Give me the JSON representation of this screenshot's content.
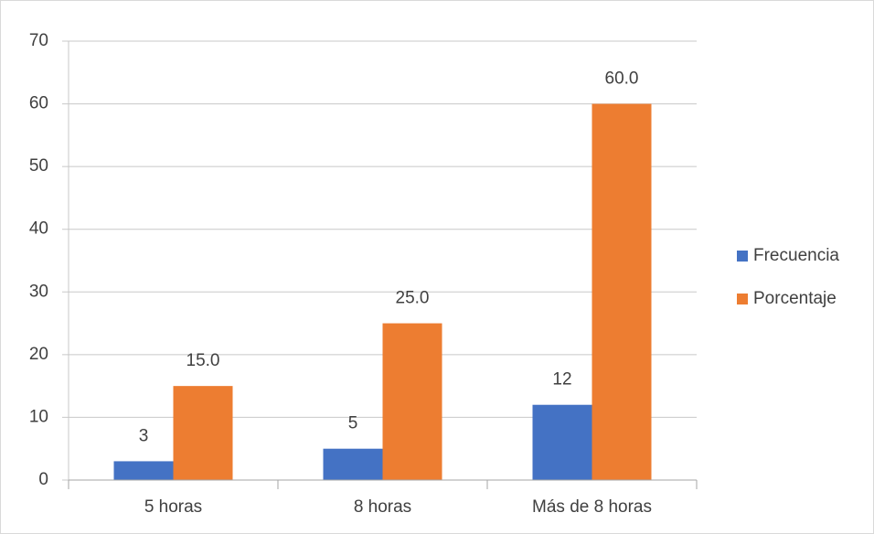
{
  "chart_data": {
    "type": "bar",
    "categories": [
      "5 horas",
      "8 horas",
      "Más de 8 horas"
    ],
    "series": [
      {
        "name": "Frecuencia",
        "color": "#4472c4",
        "values": [
          3,
          5,
          12
        ]
      },
      {
        "name": "Porcentaje",
        "color": "#ed7d31",
        "values": [
          15,
          25,
          60
        ],
        "value_labels": [
          "15.0",
          "25.0",
          "60.0"
        ]
      }
    ],
    "ylim": [
      0,
      70
    ],
    "yticks": [
      0,
      10,
      20,
      30,
      40,
      50,
      60,
      70
    ],
    "grid": true,
    "legend": "right"
  }
}
